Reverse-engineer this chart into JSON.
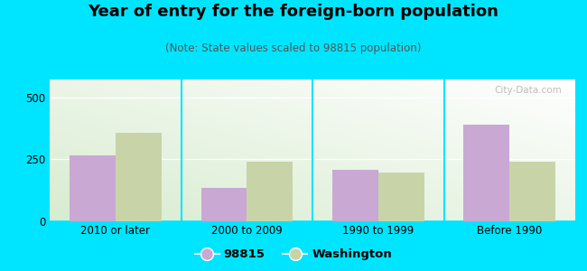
{
  "title": "Year of entry for the foreign-born population",
  "subtitle": "(Note: State values scaled to 98815 population)",
  "categories": [
    "2010 or later",
    "2000 to 2009",
    "1990 to 1999",
    "Before 1990"
  ],
  "values_98815": [
    265,
    135,
    205,
    390
  ],
  "values_washington": [
    355,
    240,
    195,
    240
  ],
  "bar_color_98815": "#c9a8d4",
  "bar_color_washington": "#c8d4a8",
  "legend_labels": [
    "98815",
    "Washington"
  ],
  "legend_colors": [
    "#c9a8d4",
    "#c8d4a8"
  ],
  "ylim": [
    0,
    570
  ],
  "yticks": [
    0,
    250,
    500
  ],
  "background_outer": "#00e5ff",
  "bg_top_right": "#ffffff",
  "bg_bottom_left": "#d8ecd0",
  "title_fontsize": 13,
  "subtitle_fontsize": 8.5,
  "tick_fontsize": 8.5,
  "legend_fontsize": 9.5,
  "bar_width": 0.35
}
